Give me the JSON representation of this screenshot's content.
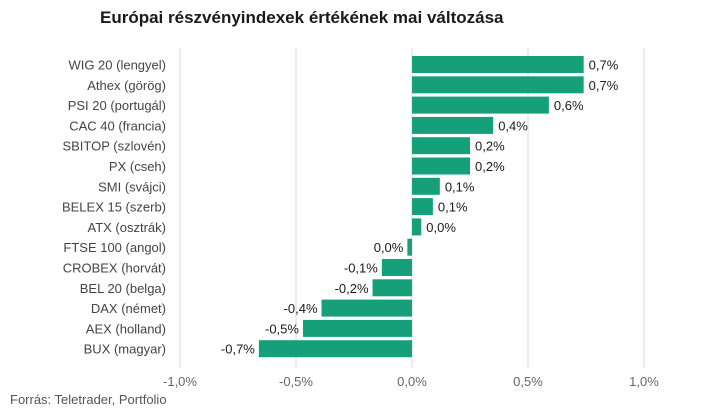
{
  "title": "Európai részvényindexek értékének mai változása",
  "source": "Forrás: Teletrader, Portfolio",
  "colors": {
    "bar": "#16a07a",
    "grid": "#d9d9d9"
  },
  "chart_data": {
    "type": "bar",
    "orientation": "horizontal",
    "title": "Európai részvényindexek értékének mai változása",
    "xlabel": "",
    "ylabel": "",
    "xlim": [
      -1.0,
      1.0
    ],
    "grid": true,
    "ticks": [
      {
        "value": -1.0,
        "label": "-1,0%"
      },
      {
        "value": -0.5,
        "label": "-0,5%"
      },
      {
        "value": 0.0,
        "label": "0,0%"
      },
      {
        "value": 0.5,
        "label": "0,5%"
      },
      {
        "value": 1.0,
        "label": "1,0%"
      }
    ],
    "categories": [
      "WIG 20 (lengyel)",
      "Athex (görög)",
      "PSI 20 (portugál)",
      "CAC 40 (francia)",
      "SBITOP (szlovén)",
      "PX (cseh)",
      "SMI (svájci)",
      "BELEX 15 (szerb)",
      "ATX (osztrák)",
      "FTSE 100 (angol)",
      "CROBEX (horvát)",
      "BEL 20 (belga)",
      "DAX (német)",
      "AEX (holland)",
      "BUX (magyar)"
    ],
    "values": [
      0.74,
      0.74,
      0.59,
      0.35,
      0.25,
      0.25,
      0.12,
      0.09,
      0.04,
      -0.02,
      -0.13,
      -0.17,
      -0.39,
      -0.47,
      -0.66
    ],
    "value_labels": [
      "0,7%",
      "0,7%",
      "0,6%",
      "0,4%",
      "0,2%",
      "0,2%",
      "0,1%",
      "0,1%",
      "0,0%",
      "0,0%",
      "-0,1%",
      "-0,2%",
      "-0,4%",
      "-0,5%",
      "-0,7%"
    ]
  }
}
